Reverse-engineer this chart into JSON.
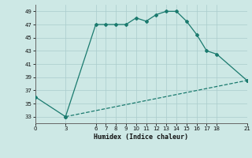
{
  "line1_x": [
    0,
    3,
    6,
    7,
    8,
    9,
    10,
    11,
    12,
    13,
    14,
    15,
    16,
    17,
    18,
    21
  ],
  "line1_y": [
    36,
    33,
    47,
    47,
    47,
    47,
    48,
    47.5,
    48.5,
    49,
    49,
    47.5,
    45.5,
    43,
    42.5,
    38.5
  ],
  "line2_x": [
    3,
    21
  ],
  "line2_y": [
    33,
    38.5
  ],
  "line_color": "#1a7a6e",
  "bg_color": "#cde8e5",
  "grid_color": "#aacccc",
  "xlabel": "Humidex (Indice chaleur)",
  "xticks": [
    0,
    3,
    6,
    7,
    8,
    9,
    10,
    11,
    12,
    13,
    14,
    15,
    16,
    17,
    18,
    21
  ],
  "yticks": [
    33,
    35,
    37,
    39,
    41,
    43,
    45,
    47,
    49
  ],
  "xlim": [
    0,
    21
  ],
  "ylim": [
    32,
    50
  ]
}
